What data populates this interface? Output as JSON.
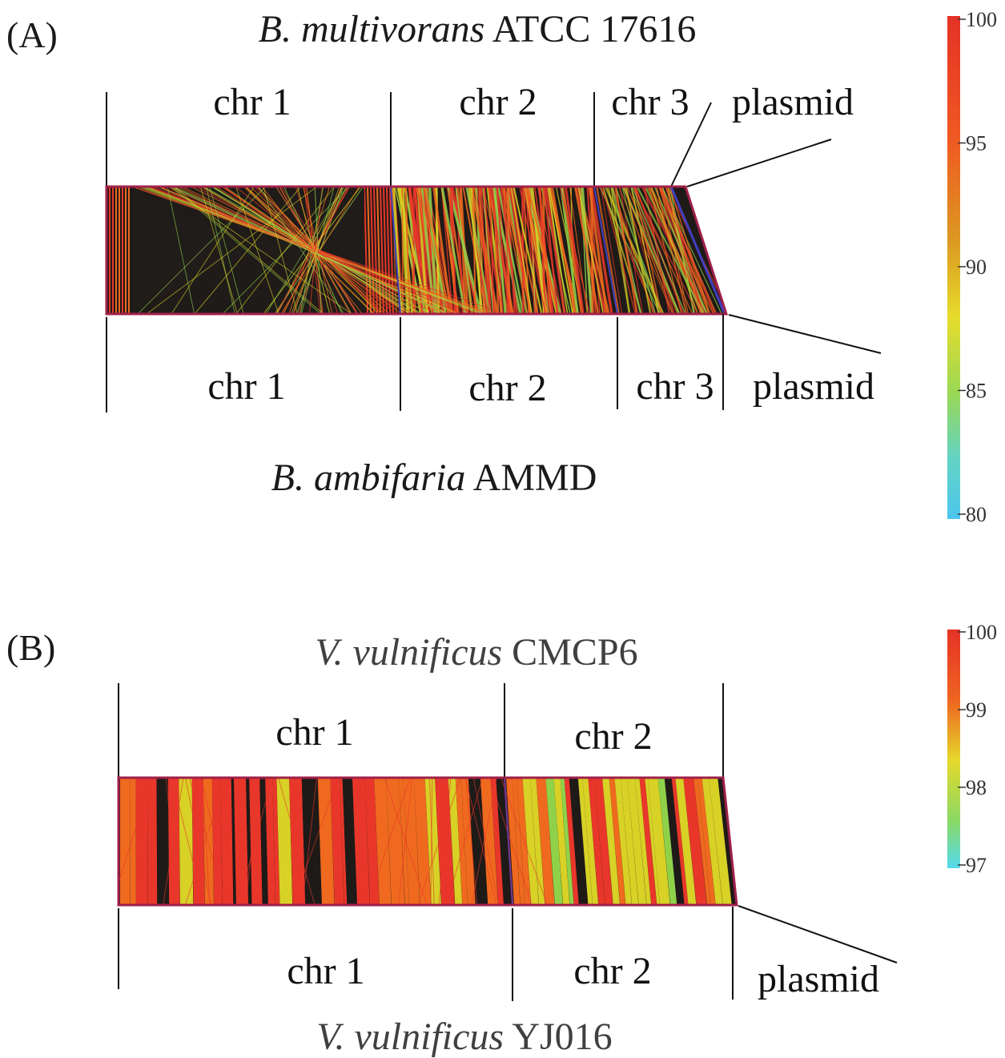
{
  "panels": [
    {
      "label": "(A)",
      "top_genome": {
        "species": "B. multivorans",
        "strain": "ATCC 17616",
        "segments": [
          "chr 1",
          "chr 2",
          "chr 3",
          "plasmid"
        ]
      },
      "bottom_genome": {
        "species": "B. ambifaria",
        "strain": "AMMD",
        "segments": [
          "chr 1",
          "chr 2",
          "chr 3",
          "plasmid"
        ]
      },
      "colorbar": {
        "ticks": [
          "100",
          "95",
          "90",
          "85",
          "80"
        ],
        "min": 80,
        "max": 100
      }
    },
    {
      "label": "(B)",
      "top_genome": {
        "species": "V. vulnificus",
        "strain": "CMCP6",
        "segments": [
          "chr 1",
          "chr 2"
        ]
      },
      "bottom_genome": {
        "species": "V. vulnificus",
        "strain": "YJ016",
        "segments": [
          "chr 1",
          "chr 2",
          "plasmid"
        ]
      },
      "colorbar": {
        "ticks": [
          "100",
          "99",
          "98",
          "97"
        ],
        "min": 97,
        "max": 100
      }
    }
  ],
  "colors": {
    "high_identity": "#e8372a",
    "mid_high": "#ef6a1f",
    "mid": "#d8d126",
    "mid_low": "#8fd24a",
    "low_identity": "#52c8ef",
    "band_background": "#1e1a18",
    "border": "#a0204a",
    "boundary_line": "#4040c0"
  }
}
